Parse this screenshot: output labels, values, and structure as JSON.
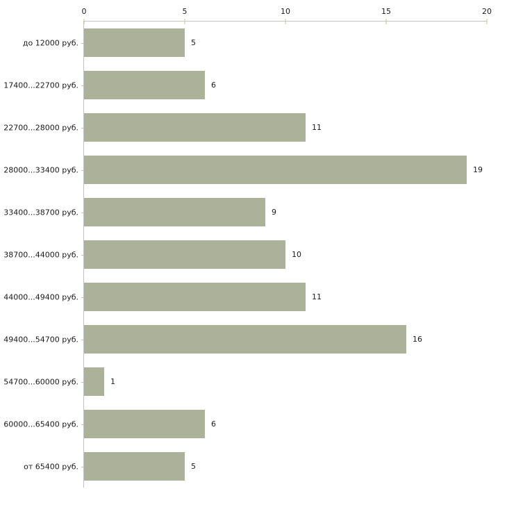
{
  "chart_data": {
    "type": "bar",
    "orientation": "horizontal",
    "title": "",
    "xlabel": "",
    "ylabel": "",
    "categories": [
      "до 12000 руб.",
      "17400...22700 руб.",
      "22700...28000 руб.",
      "28000...33400 руб.",
      "33400...38700 руб.",
      "38700...44000 руб.",
      "44000...49400 руб.",
      "49400...54700 руб.",
      "54700...60000 руб.",
      "60000...65400 руб.",
      "от 65400 руб."
    ],
    "values": [
      5,
      6,
      11,
      19,
      9,
      10,
      11,
      16,
      1,
      6,
      5
    ],
    "value_labels": [
      "5",
      "6",
      "11",
      "19",
      "9",
      "10",
      "11",
      "16",
      "1",
      "6",
      "5"
    ],
    "xlim": [
      0,
      20
    ],
    "x_ticks": [
      "0",
      "5",
      "10",
      "15",
      "20"
    ],
    "axis_position": "top",
    "grid": false,
    "legend": null,
    "colors": {
      "bar": "#acb199",
      "axis_line": "#c2c2c2",
      "tick": "#c3c59d",
      "text": "#1a1a1a",
      "background": "#ffffff"
    }
  }
}
